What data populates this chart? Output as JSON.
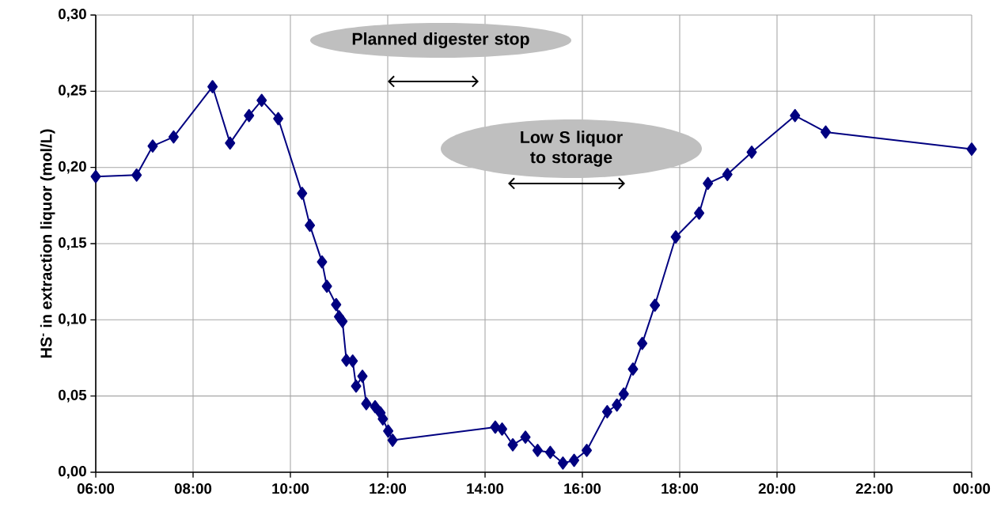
{
  "chart_data": {
    "type": "line",
    "ylabel": "HS$^{-}$ in extraction liquor (mol/L)",
    "x": [
      6.0,
      6.84,
      7.17,
      7.6,
      8.4,
      8.76,
      9.15,
      9.41,
      9.75,
      10.24,
      10.4,
      10.65,
      10.75,
      10.94,
      11.0,
      11.07,
      11.15,
      11.28,
      11.35,
      11.48,
      11.56,
      11.74,
      11.85,
      11.9,
      12.01,
      12.1,
      14.21,
      14.35,
      14.57,
      14.83,
      15.08,
      15.34,
      15.6,
      15.83,
      16.09,
      16.51,
      16.71,
      16.85,
      17.04,
      17.23,
      17.49,
      17.92,
      18.4,
      18.58,
      18.98,
      19.48,
      20.37,
      21.0,
      24.0
    ],
    "series": [
      {
        "color": "#000080",
        "values": [
          0.194,
          0.195,
          0.214,
          0.22,
          0.253,
          0.216,
          0.234,
          0.244,
          0.232,
          0.183,
          0.162,
          0.138,
          0.122,
          0.11,
          0.102,
          0.099,
          0.0735,
          0.073,
          0.0565,
          0.063,
          0.045,
          0.043,
          0.039,
          0.035,
          0.027,
          0.021,
          0.0296,
          0.0283,
          0.018,
          0.023,
          0.0143,
          0.013,
          0.006,
          0.0078,
          0.0143,
          0.0397,
          0.0441,
          0.0513,
          0.0677,
          0.0845,
          0.1096,
          0.1544,
          0.17,
          0.1895,
          0.1954,
          0.21,
          0.234,
          0.2232,
          0.212
        ]
      }
    ],
    "marker": "diamond",
    "grid": true,
    "xlim": [
      6,
      24
    ],
    "ylim": [
      0,
      0.3
    ],
    "xticks": [
      {
        "value": 6,
        "label": "06:00"
      },
      {
        "value": 8,
        "label": "08:00"
      },
      {
        "value": 10,
        "label": "10:00"
      },
      {
        "value": 12,
        "label": "12:00"
      },
      {
        "value": 14,
        "label": "14:00"
      },
      {
        "value": 16,
        "label": "16:00"
      },
      {
        "value": 18,
        "label": "18:00"
      },
      {
        "value": 20,
        "label": "20:00"
      },
      {
        "value": 22,
        "label": "22:00"
      },
      {
        "value": 24,
        "label": "00:00"
      }
    ],
    "yticks": [
      {
        "value": 0,
        "label": "0,00"
      },
      {
        "value": 0.05,
        "label": "0,05"
      },
      {
        "value": 0.1,
        "label": "0,10"
      },
      {
        "value": 0.15,
        "label": "0,15"
      },
      {
        "value": 0.2,
        "label": "0,20"
      },
      {
        "value": 0.25,
        "label": "0,25"
      },
      {
        "value": 0.3,
        "label": "0,30"
      }
    ],
    "annotations": [
      "Planned digester stop",
      "Low S liquor to storage"
    ]
  }
}
